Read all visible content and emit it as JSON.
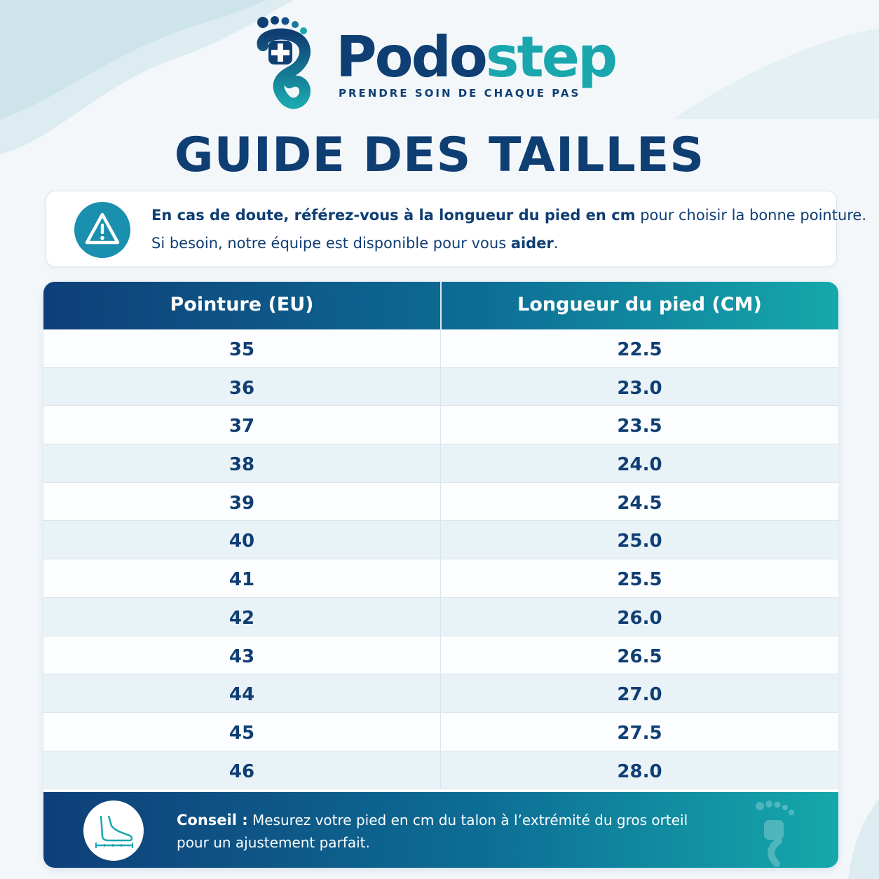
{
  "brand": {
    "name_part1": "Podo",
    "name_part2": "step",
    "tagline": "PRENDRE SOIN DE CHAQUE PAS"
  },
  "title": "GUIDE DES TAILLES",
  "notice": {
    "icon": "warning-icon",
    "line1_bold": "En cas de doute, référez-vous à la longueur du pied en cm",
    "line1_rest": " pour choisir la bonne pointure.",
    "line2_start": "Si besoin, notre équipe est disponible pour vous ",
    "line2_bold": "aider",
    "line2_end": "."
  },
  "table": {
    "headers": [
      "Pointure (EU)",
      "Longueur du pied (CM)"
    ],
    "rows": [
      [
        "35",
        "22.5"
      ],
      [
        "36",
        "23.0"
      ],
      [
        "37",
        "23.5"
      ],
      [
        "38",
        "24.0"
      ],
      [
        "39",
        "24.5"
      ],
      [
        "40",
        "25.0"
      ],
      [
        "41",
        "25.5"
      ],
      [
        "42",
        "26.0"
      ],
      [
        "43",
        "26.5"
      ],
      [
        "44",
        "27.0"
      ],
      [
        "45",
        "27.5"
      ],
      [
        "46",
        "28.0"
      ]
    ]
  },
  "tip": {
    "icon": "foot-measure-icon",
    "label": "Conseil :",
    "line1": " Mesurez votre pied en cm du talon à l’extrémité du gros orteil",
    "line2": "pour un ajustement parfait."
  },
  "colors": {
    "navy": "#0f3e73",
    "teal": "#1aa6ad",
    "row_alt": "#e8f2f7"
  }
}
